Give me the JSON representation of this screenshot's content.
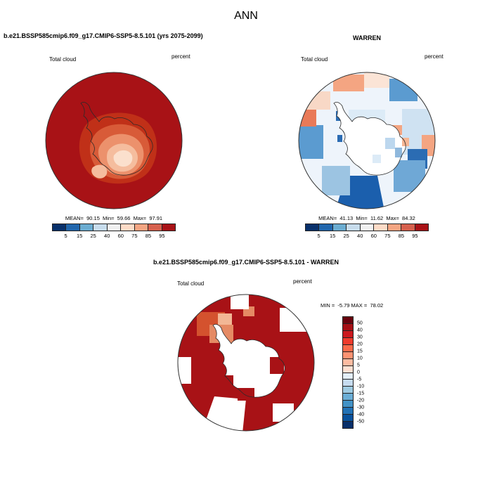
{
  "page": {
    "title": "ANN"
  },
  "panels": {
    "model": {
      "header": "b.e21.BSSP585cmip6.f09_g17.CMIP6-SSP5-8.5.101 (yrs 2075-2099)",
      "variable": "Total cloud",
      "units": "percent",
      "stats": "MEAN=  90.15  Min=  59.66  Max=  97.91",
      "colorbar": {
        "orientation": "horizontal",
        "ticks": [
          "5",
          "15",
          "25",
          "40",
          "60",
          "75",
          "85",
          "95"
        ],
        "colors": [
          "#08306b",
          "#2166ac",
          "#6bacd1",
          "#c7dcec",
          "#f0f0f0",
          "#fddbc7",
          "#f4a582",
          "#d6604d",
          "#a81216"
        ]
      }
    },
    "obs": {
      "header": "WARREN",
      "variable": "Total cloud",
      "units": "percent",
      "stats": "MEAN=  41.13  Min=  11.62  Max=  84.32",
      "colorbar": {
        "orientation": "horizontal",
        "ticks": [
          "5",
          "15",
          "25",
          "40",
          "60",
          "75",
          "85",
          "95"
        ],
        "colors": [
          "#08306b",
          "#2166ac",
          "#6bacd1",
          "#c7dcec",
          "#f0f0f0",
          "#fddbc7",
          "#f4a582",
          "#d6604d",
          "#a81216"
        ]
      }
    },
    "diff": {
      "header": "b.e21.BSSP585cmip6.f09_g17.CMIP6-SSP5-8.5.101 - WARREN",
      "variable": "Total cloud",
      "units": "percent",
      "minmax": "MIN =  -5.79 MAX =  78.02",
      "colorbar": {
        "orientation": "vertical",
        "ticks": [
          "50",
          "40",
          "30",
          "20",
          "15",
          "10",
          "5",
          "0",
          "-5",
          "-10",
          "-15",
          "-20",
          "-30",
          "-40",
          "-50"
        ],
        "colors": [
          "#67000d",
          "#a50f15",
          "#cb181d",
          "#ef3b2c",
          "#fb6a4a",
          "#fc9272",
          "#fcbba1",
          "#fee0d2",
          "#e3eef8",
          "#c6dbef",
          "#9ecae1",
          "#6baed6",
          "#4292c6",
          "#2171b5",
          "#08519c",
          "#08306b"
        ]
      }
    }
  },
  "colors": {
    "background": "#ffffff",
    "text": "#000000",
    "model_map_dominant": "#a81216",
    "obs_map_dominant": "#eef4fb",
    "diff_map_dominant": "#a81216",
    "coastline": "#2a2a2a"
  },
  "chart_data": [
    {
      "type": "heatmap",
      "projection": "south-polar-stereographic",
      "season": "ANN",
      "title": "b.e21.BSSP585cmip6.f09_g17.CMIP6-SSP5-8.5.101 (yrs 2075-2099)",
      "variable": "Total cloud",
      "units": "percent",
      "mean": 90.15,
      "min": 59.66,
      "max": 97.91,
      "colorbar_levels": [
        5,
        15,
        25,
        40,
        60,
        75,
        85,
        95
      ],
      "legend_position": "bottom",
      "description": "Model annual-mean total cloud fraction over Antarctica; mostly >85% (dark red) over Southern Ocean, decreasing to ~60-75% (pink/pale) over the interior plateau"
    },
    {
      "type": "heatmap",
      "projection": "south-polar-stereographic",
      "season": "ANN",
      "title": "WARREN",
      "variable": "Total cloud",
      "units": "percent",
      "mean": 41.13,
      "min": 11.62,
      "max": 84.32,
      "colorbar_levels": [
        5,
        15,
        25,
        40,
        60,
        75,
        85,
        95
      ],
      "legend_position": "bottom",
      "description": "WARREN observations: blocky coarse field of ~15-60% cloud (blues/white) with scattered 60-85% patches (salmon) near the coast"
    },
    {
      "type": "heatmap",
      "projection": "south-polar-stereographic",
      "season": "ANN",
      "title": "b.e21.BSSP585cmip6.f09_g17.CMIP6-SSP5-8.5.101 - WARREN",
      "variable": "Total cloud",
      "units": "percent",
      "min": -5.79,
      "max": 78.02,
      "colorbar_levels": [
        50,
        40,
        30,
        20,
        15,
        10,
        5,
        0,
        -5,
        -10,
        -15,
        -20,
        -30,
        -40,
        -50
      ],
      "legend_position": "right",
      "description": "Model minus WARREN difference: strongly positive (>50, dark red) nearly everywhere with data; white cells where observations are missing"
    }
  ]
}
